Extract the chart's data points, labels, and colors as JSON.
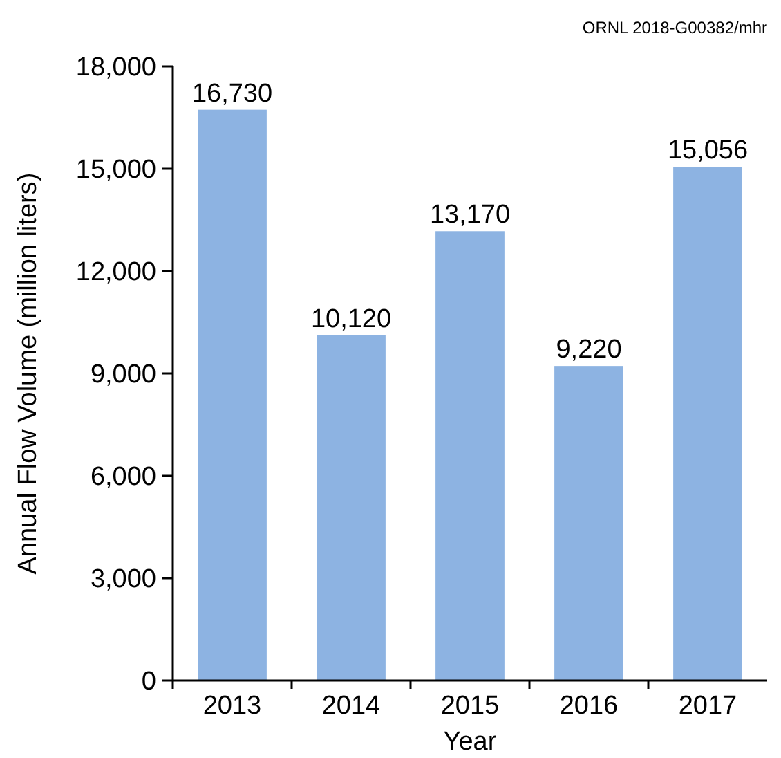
{
  "chart_data": {
    "type": "bar",
    "xlabel": "Year",
    "ylabel": "Annual Flow Volume (million liters)",
    "categories": [
      "2013",
      "2014",
      "2015",
      "2016",
      "2017"
    ],
    "values": [
      16730,
      10120,
      13170,
      9220,
      15056
    ],
    "value_labels": [
      "16,730",
      "10,120",
      "13,170",
      "9,220",
      "15,056"
    ],
    "color": "#8db3e2",
    "ylim": [
      0,
      18000
    ],
    "yticks": [
      {
        "value": 0,
        "label": "0"
      },
      {
        "value": 3000,
        "label": "3,000"
      },
      {
        "value": 6000,
        "label": "6,000"
      },
      {
        "value": 9000,
        "label": "9,000"
      },
      {
        "value": 12000,
        "label": "12,000"
      },
      {
        "value": 15000,
        "label": "15,000"
      },
      {
        "value": 18000,
        "label": "18,000"
      }
    ],
    "grid": false,
    "annotations": [
      "ORNL 2018-G00382/mhr"
    ]
  }
}
